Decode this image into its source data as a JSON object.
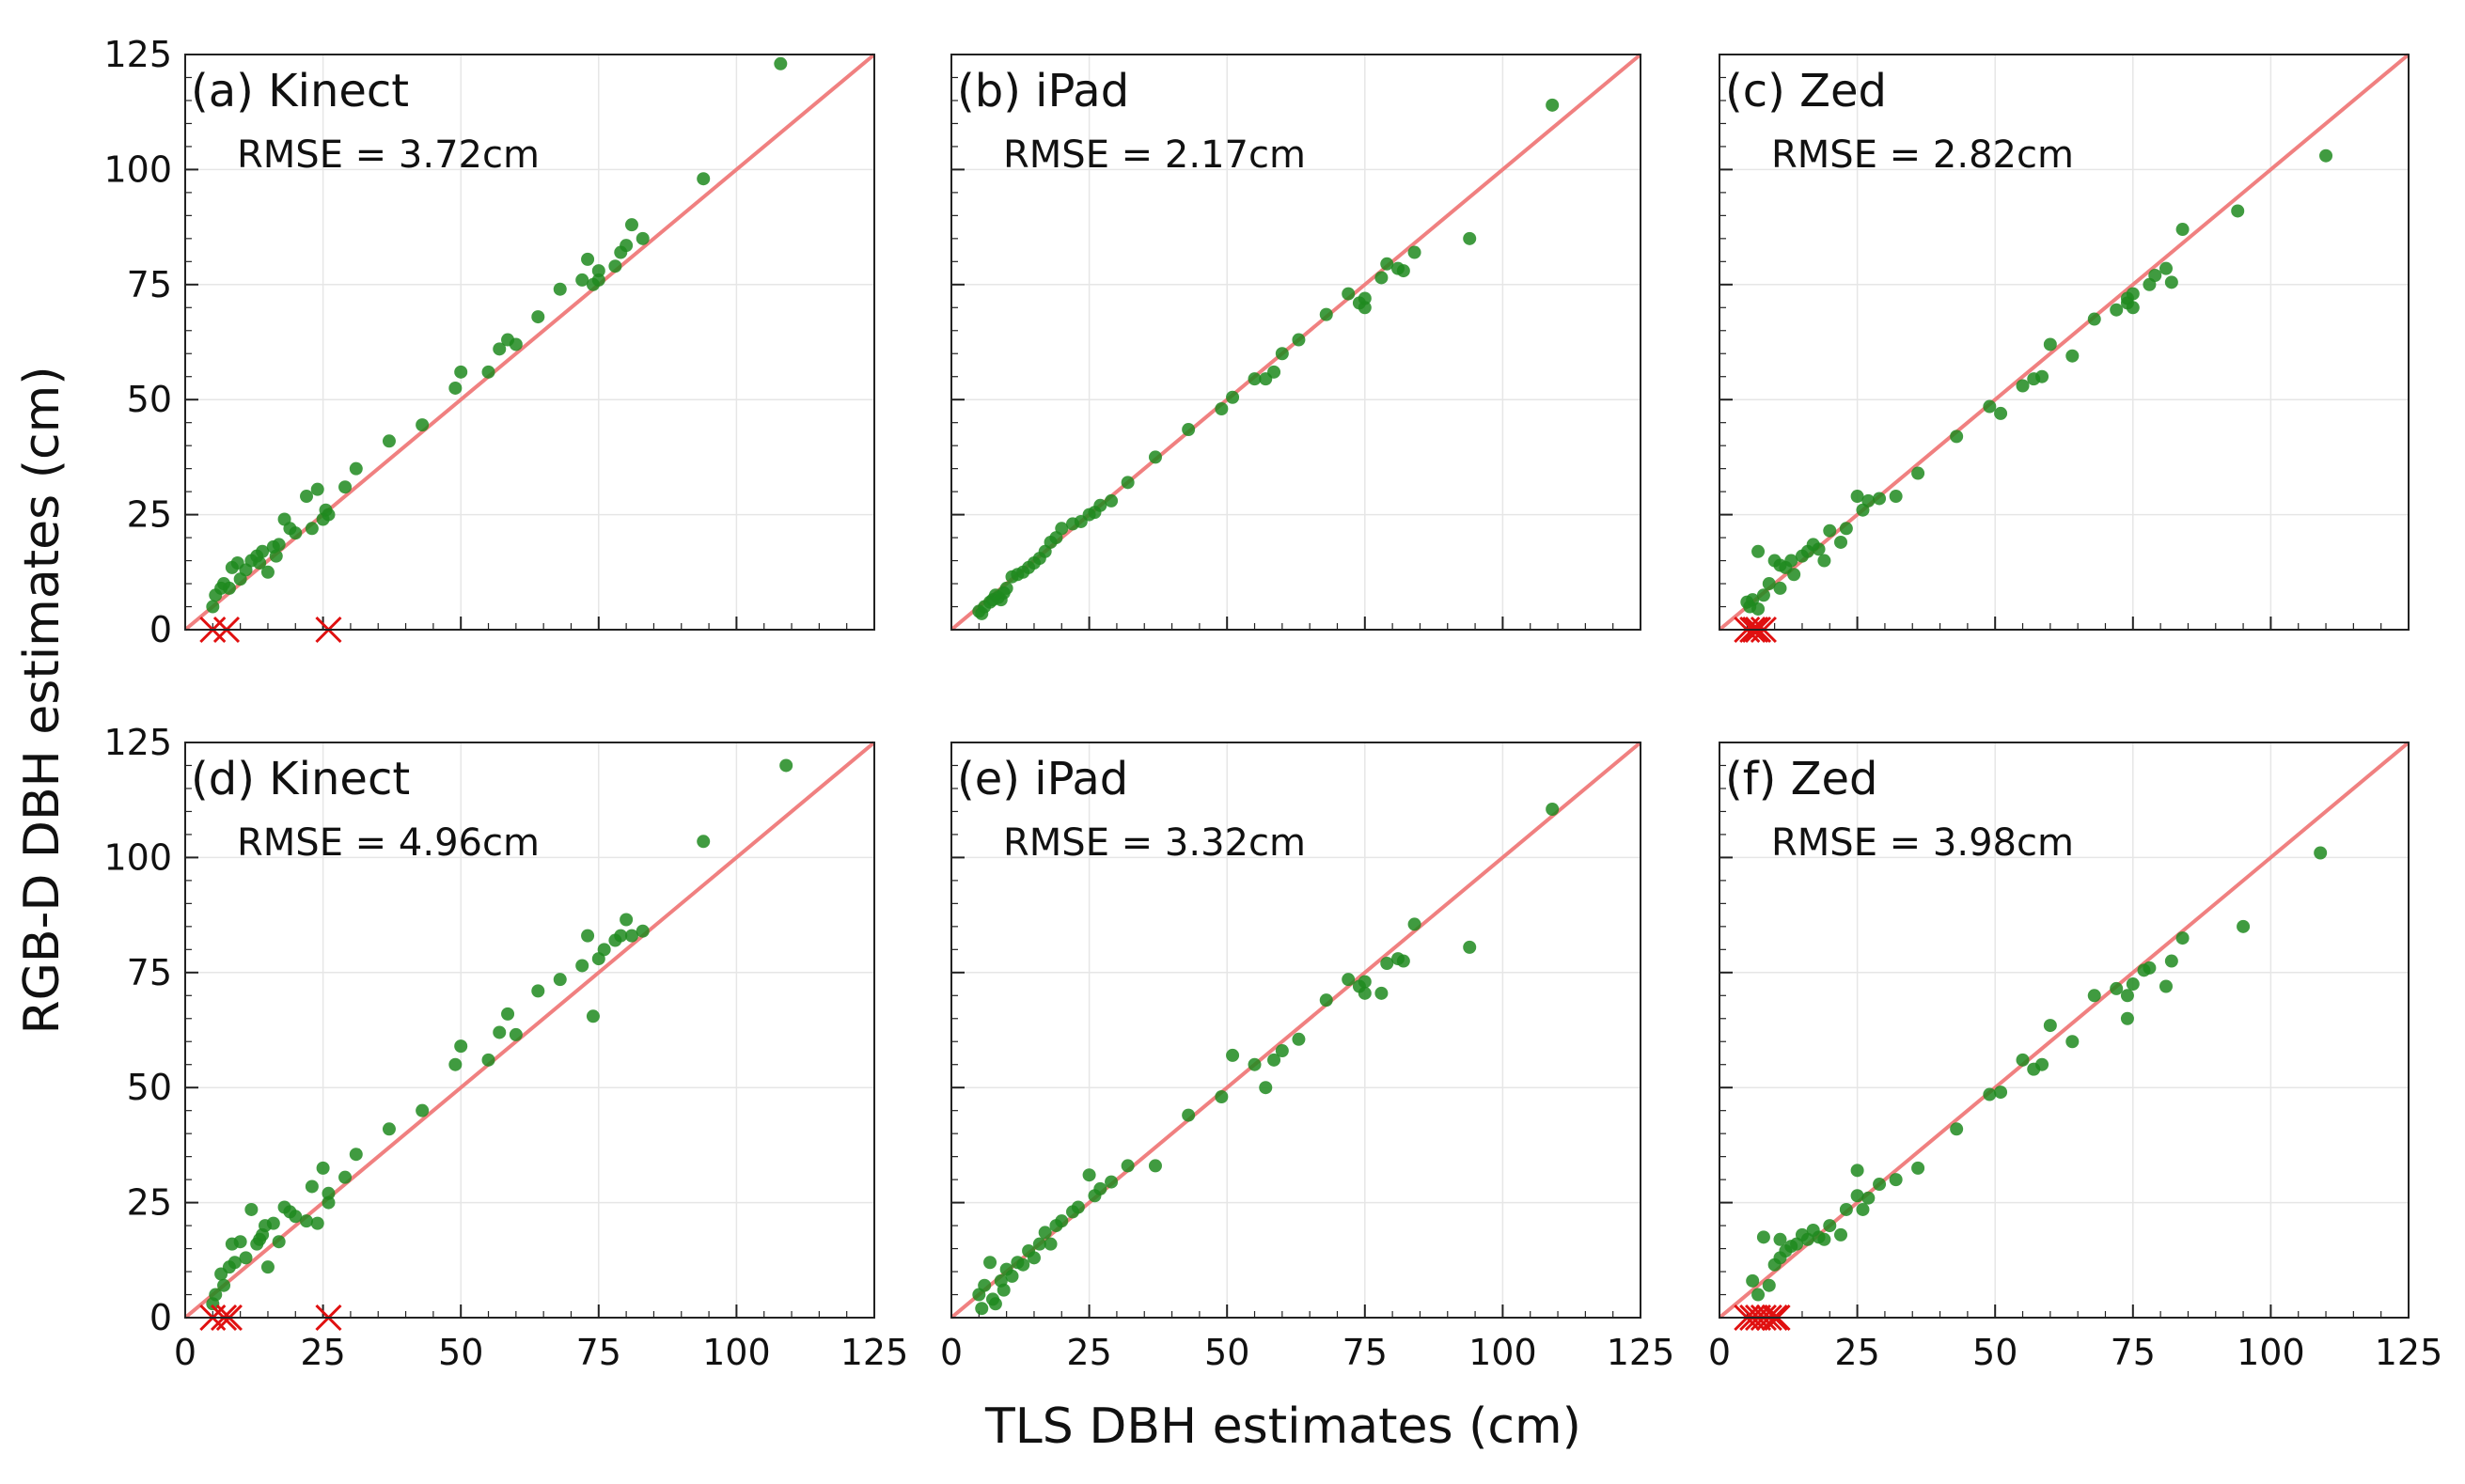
{
  "chart_data": {
    "type": "scatter",
    "xlabel": "TLS DBH estimates (cm)",
    "ylabel": "RGB-D DBH estimates (cm)",
    "xlim": [
      0,
      125
    ],
    "ylim": [
      0,
      125
    ],
    "ticks": [
      0,
      25,
      50,
      75,
      100,
      125
    ],
    "tick_labels": [
      "0",
      "25",
      "50",
      "75",
      "100",
      "125"
    ],
    "reference_line": "1:1",
    "colors": {
      "points": "#1f8a1f",
      "reference_line": "#f08080",
      "failures": "#e01010"
    },
    "panels": [
      {
        "title": "(a) Kinect",
        "rmse": "RMSE = 3.72cm",
        "points": [
          [
            5,
            5
          ],
          [
            5.5,
            7.5
          ],
          [
            6.5,
            9
          ],
          [
            7,
            10
          ],
          [
            8,
            9
          ],
          [
            8.5,
            13.5
          ],
          [
            9.5,
            14.5
          ],
          [
            10,
            11
          ],
          [
            11,
            13
          ],
          [
            12,
            15
          ],
          [
            13,
            16
          ],
          [
            13.5,
            14.5
          ],
          [
            14,
            17
          ],
          [
            15,
            12.5
          ],
          [
            16,
            18
          ],
          [
            16.5,
            16
          ],
          [
            17,
            18.5
          ],
          [
            18,
            24
          ],
          [
            19,
            22
          ],
          [
            20,
            21
          ],
          [
            22,
            29
          ],
          [
            23,
            22
          ],
          [
            24,
            30.5
          ],
          [
            25,
            24
          ],
          [
            25.5,
            26
          ],
          [
            26,
            25
          ],
          [
            29,
            31
          ],
          [
            31,
            35
          ],
          [
            37,
            41
          ],
          [
            43,
            44.5
          ],
          [
            49,
            52.5
          ],
          [
            50,
            56
          ],
          [
            55,
            56
          ],
          [
            57,
            61
          ],
          [
            58.5,
            63
          ],
          [
            60,
            62
          ],
          [
            64,
            68
          ],
          [
            68,
            74
          ],
          [
            72,
            76
          ],
          [
            73,
            80.5
          ],
          [
            74,
            75
          ],
          [
            75,
            76
          ],
          [
            75,
            78
          ],
          [
            78,
            79
          ],
          [
            79,
            82
          ],
          [
            80,
            83.5
          ],
          [
            81,
            88
          ],
          [
            83,
            85
          ],
          [
            94,
            98
          ],
          [
            108,
            123
          ]
        ],
        "failures": [
          [
            5,
            0
          ],
          [
            7.5,
            0
          ],
          [
            26,
            0
          ]
        ]
      },
      {
        "title": "(b) iPad",
        "rmse": "RMSE = 2.17cm",
        "points": [
          [
            5,
            4
          ],
          [
            5.5,
            3.5
          ],
          [
            6,
            5
          ],
          [
            7,
            6
          ],
          [
            7.5,
            6.5
          ],
          [
            8,
            7.5
          ],
          [
            8.5,
            7
          ],
          [
            9,
            6.5
          ],
          [
            9.5,
            8
          ],
          [
            10,
            9
          ],
          [
            11,
            11.5
          ],
          [
            12,
            12
          ],
          [
            13,
            12.5
          ],
          [
            14,
            13.5
          ],
          [
            15,
            14.5
          ],
          [
            16,
            15.5
          ],
          [
            17,
            17
          ],
          [
            18,
            19
          ],
          [
            19,
            20
          ],
          [
            20,
            22
          ],
          [
            22,
            23
          ],
          [
            23.5,
            23.5
          ],
          [
            25,
            25
          ],
          [
            26,
            25.5
          ],
          [
            27,
            27
          ],
          [
            29,
            28
          ],
          [
            32,
            32
          ],
          [
            37,
            37.5
          ],
          [
            43,
            43.5
          ],
          [
            49,
            48
          ],
          [
            51,
            50.5
          ],
          [
            55,
            54.5
          ],
          [
            57,
            54.5
          ],
          [
            58.5,
            56
          ],
          [
            60,
            60
          ],
          [
            63,
            63
          ],
          [
            68,
            68.5
          ],
          [
            72,
            73
          ],
          [
            74,
            71
          ],
          [
            75,
            70
          ],
          [
            75,
            72
          ],
          [
            78,
            76.5
          ],
          [
            79,
            79.5
          ],
          [
            81,
            78.5
          ],
          [
            82,
            78
          ],
          [
            84,
            82
          ],
          [
            94,
            85
          ],
          [
            109,
            114
          ]
        ],
        "failures": []
      },
      {
        "title": "(c) Zed",
        "rmse": "RMSE = 2.82cm",
        "points": [
          [
            5,
            6
          ],
          [
            5.5,
            5
          ],
          [
            6,
            6.5
          ],
          [
            7,
            4.5
          ],
          [
            7,
            17
          ],
          [
            8,
            7.5
          ],
          [
            9,
            10
          ],
          [
            10,
            15
          ],
          [
            11,
            14
          ],
          [
            11,
            9
          ],
          [
            12,
            13.5
          ],
          [
            13,
            15
          ],
          [
            13.5,
            12
          ],
          [
            15,
            16
          ],
          [
            16,
            17
          ],
          [
            17,
            18.5
          ],
          [
            18,
            17.5
          ],
          [
            19,
            15
          ],
          [
            20,
            21.5
          ],
          [
            22,
            19
          ],
          [
            23,
            22
          ],
          [
            25,
            29
          ],
          [
            26,
            26
          ],
          [
            27,
            28
          ],
          [
            29,
            28.5
          ],
          [
            32,
            29
          ],
          [
            36,
            34
          ],
          [
            43,
            42
          ],
          [
            49,
            48.5
          ],
          [
            51,
            47
          ],
          [
            55,
            53
          ],
          [
            57,
            54.5
          ],
          [
            58.5,
            55
          ],
          [
            60,
            62
          ],
          [
            64,
            59.5
          ],
          [
            68,
            67.5
          ],
          [
            72,
            69.5
          ],
          [
            74,
            71
          ],
          [
            74,
            72
          ],
          [
            75,
            70
          ],
          [
            75,
            73
          ],
          [
            78,
            75
          ],
          [
            79,
            77
          ],
          [
            81,
            78.5
          ],
          [
            82,
            75.5
          ],
          [
            84,
            87
          ],
          [
            94,
            91
          ],
          [
            110,
            103
          ]
        ],
        "failures": [
          [
            5,
            0
          ],
          [
            6,
            0
          ],
          [
            6.5,
            0
          ],
          [
            7,
            0
          ],
          [
            8,
            0
          ]
        ]
      },
      {
        "title": "(d) Kinect",
        "rmse": "RMSE = 4.96cm",
        "points": [
          [
            5,
            3
          ],
          [
            5.5,
            5
          ],
          [
            6.5,
            9.5
          ],
          [
            7,
            7
          ],
          [
            8,
            11
          ],
          [
            8.5,
            16
          ],
          [
            9,
            12
          ],
          [
            10,
            16.5
          ],
          [
            11,
            13
          ],
          [
            12,
            23.5
          ],
          [
            13,
            16
          ],
          [
            13.5,
            17
          ],
          [
            14,
            18
          ],
          [
            14.5,
            20
          ],
          [
            15,
            11
          ],
          [
            16,
            20.5
          ],
          [
            17,
            16.5
          ],
          [
            18,
            24
          ],
          [
            19,
            23
          ],
          [
            20,
            22
          ],
          [
            22,
            21
          ],
          [
            23,
            28.5
          ],
          [
            24,
            20.5
          ],
          [
            25,
            32.5
          ],
          [
            26,
            25
          ],
          [
            26,
            27
          ],
          [
            29,
            30.5
          ],
          [
            31,
            35.5
          ],
          [
            37,
            41
          ],
          [
            43,
            45
          ],
          [
            49,
            55
          ],
          [
            50,
            59
          ],
          [
            55,
            56
          ],
          [
            57,
            62
          ],
          [
            58.5,
            66
          ],
          [
            60,
            61.5
          ],
          [
            64,
            71
          ],
          [
            68,
            73.5
          ],
          [
            72,
            76.5
          ],
          [
            73,
            83
          ],
          [
            74,
            65.5
          ],
          [
            75,
            78
          ],
          [
            76,
            80
          ],
          [
            78,
            82
          ],
          [
            79,
            83
          ],
          [
            80,
            86.5
          ],
          [
            81,
            83
          ],
          [
            83,
            84
          ],
          [
            94,
            103.5
          ],
          [
            109,
            120
          ]
        ],
        "failures": [
          [
            5,
            0
          ],
          [
            7,
            0
          ],
          [
            8,
            0
          ],
          [
            26,
            0
          ]
        ]
      },
      {
        "title": "(e) iPad",
        "rmse": "RMSE = 3.32cm",
        "points": [
          [
            5,
            5
          ],
          [
            5.5,
            2
          ],
          [
            6,
            7
          ],
          [
            7,
            12
          ],
          [
            7.5,
            4
          ],
          [
            8,
            3
          ],
          [
            9,
            8
          ],
          [
            9.5,
            6
          ],
          [
            10,
            10.5
          ],
          [
            11,
            9
          ],
          [
            12,
            12
          ],
          [
            13,
            11.5
          ],
          [
            14,
            14.5
          ],
          [
            15,
            13
          ],
          [
            16,
            16
          ],
          [
            17,
            18.5
          ],
          [
            18,
            16
          ],
          [
            19,
            20
          ],
          [
            20,
            21
          ],
          [
            22,
            23
          ],
          [
            23,
            24
          ],
          [
            25,
            31
          ],
          [
            26,
            26.5
          ],
          [
            27,
            28
          ],
          [
            29,
            29.5
          ],
          [
            32,
            33
          ],
          [
            37,
            33
          ],
          [
            43,
            44
          ],
          [
            49,
            48
          ],
          [
            51,
            57
          ],
          [
            55,
            55
          ],
          [
            57,
            50
          ],
          [
            58.5,
            56
          ],
          [
            60,
            58
          ],
          [
            63,
            60.5
          ],
          [
            68,
            69
          ],
          [
            72,
            73.5
          ],
          [
            74,
            72
          ],
          [
            75,
            70.5
          ],
          [
            75,
            73
          ],
          [
            78,
            70.5
          ],
          [
            79,
            77
          ],
          [
            81,
            78
          ],
          [
            82,
            77.5
          ],
          [
            84,
            85.5
          ],
          [
            94,
            80.5
          ],
          [
            109,
            110.5
          ]
        ],
        "failures": []
      },
      {
        "title": "(f) Zed",
        "rmse": "RMSE = 3.98cm",
        "points": [
          [
            6,
            8
          ],
          [
            7,
            5
          ],
          [
            8,
            17.5
          ],
          [
            9,
            7
          ],
          [
            10,
            11.5
          ],
          [
            11,
            17
          ],
          [
            11,
            13
          ],
          [
            12,
            14.5
          ],
          [
            13,
            15.5
          ],
          [
            14,
            16
          ],
          [
            15,
            18
          ],
          [
            16,
            17
          ],
          [
            17,
            19
          ],
          [
            18,
            17.5
          ],
          [
            19,
            17
          ],
          [
            20,
            20
          ],
          [
            22,
            18
          ],
          [
            23,
            23.5
          ],
          [
            25,
            26.5
          ],
          [
            25,
            32
          ],
          [
            26,
            23.5
          ],
          [
            27,
            26
          ],
          [
            29,
            29
          ],
          [
            32,
            30
          ],
          [
            36,
            32.5
          ],
          [
            43,
            41
          ],
          [
            49,
            48.5
          ],
          [
            51,
            49
          ],
          [
            55,
            56
          ],
          [
            57,
            54
          ],
          [
            58.5,
            55
          ],
          [
            60,
            63.5
          ],
          [
            64,
            60
          ],
          [
            68,
            70
          ],
          [
            72,
            71.5
          ],
          [
            74,
            70
          ],
          [
            74,
            65
          ],
          [
            75,
            72.5
          ],
          [
            77,
            75.5
          ],
          [
            78,
            76
          ],
          [
            81,
            72
          ],
          [
            82,
            77.5
          ],
          [
            84,
            82.5
          ],
          [
            95,
            85
          ],
          [
            109,
            101
          ]
        ],
        "failures": [
          [
            5,
            0
          ],
          [
            6,
            0
          ],
          [
            7,
            0
          ],
          [
            8,
            0
          ],
          [
            9,
            0
          ],
          [
            10,
            0
          ],
          [
            10.5,
            0
          ]
        ]
      }
    ]
  }
}
